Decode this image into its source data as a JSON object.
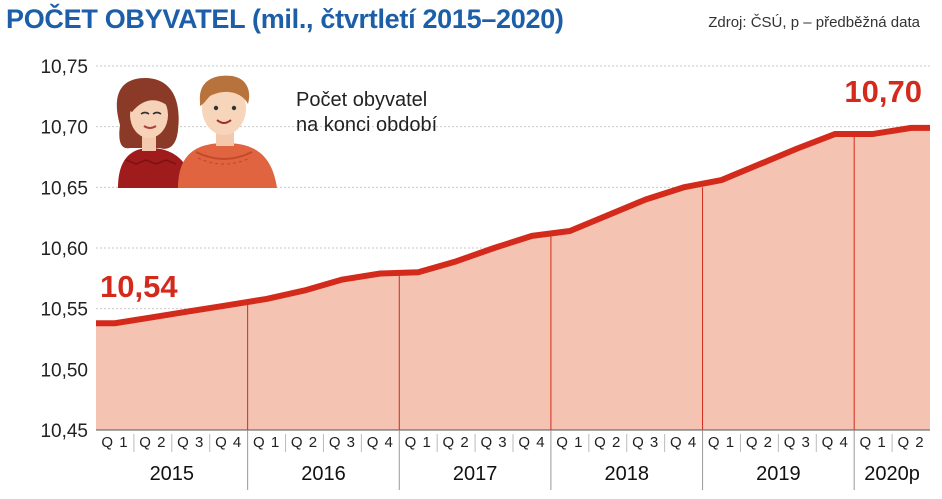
{
  "header": {
    "title": "POČET OBYVATEL (mil., čtvrtletí 2015–2020)",
    "source": "Zdroj: ČSÚ, p – předběžná data"
  },
  "annotation": {
    "line1": "Počet obyvatel",
    "line2": "na konci období"
  },
  "colors": {
    "line": "#d42a1c",
    "area": "#f4c3b2",
    "title": "#1c5fa8",
    "label": "#d42a1c"
  },
  "illustration": {
    "icon": "couple-illustration"
  },
  "chart_data": {
    "type": "area",
    "title": "POČET OBYVATEL (mil., čtvrtletí 2015–2020)",
    "ylim": [
      10.45,
      10.75
    ],
    "yticks": [
      "10,45",
      "10,50",
      "10,55",
      "10,60",
      "10,65",
      "10,70",
      "10,75"
    ],
    "grid": "horizontal",
    "groups": [
      {
        "label": "2015",
        "quarters": [
          "Q 1",
          "Q 2",
          "Q 3",
          "Q 4"
        ]
      },
      {
        "label": "2016",
        "quarters": [
          "Q 1",
          "Q 2",
          "Q 3",
          "Q 4"
        ]
      },
      {
        "label": "2017",
        "quarters": [
          "Q 1",
          "Q 2",
          "Q 3",
          "Q 4"
        ]
      },
      {
        "label": "2018",
        "quarters": [
          "Q 1",
          "Q 2",
          "Q 3",
          "Q 4"
        ]
      },
      {
        "label": "2019",
        "quarters": [
          "Q 1",
          "Q 2",
          "Q 3",
          "Q 4"
        ]
      },
      {
        "label": "2020p",
        "quarters": [
          "Q 1",
          "Q 2"
        ]
      }
    ],
    "values": [
      10.538,
      10.543,
      10.548,
      10.553,
      10.558,
      10.565,
      10.574,
      10.579,
      10.58,
      10.589,
      10.6,
      10.61,
      10.614,
      10.627,
      10.64,
      10.65,
      10.656,
      10.669,
      10.682,
      10.694,
      10.694,
      10.699
    ],
    "data_labels": [
      {
        "index": 0,
        "text": "10,54"
      },
      {
        "index": 21,
        "text": "10,70"
      }
    ]
  }
}
